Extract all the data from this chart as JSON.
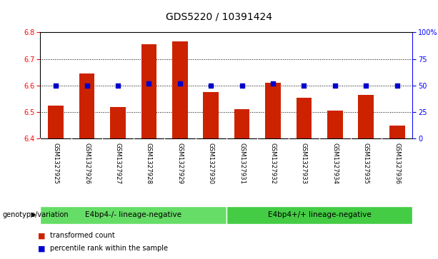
{
  "title": "GDS5220 / 10391424",
  "samples": [
    "GSM1327925",
    "GSM1327926",
    "GSM1327927",
    "GSM1327928",
    "GSM1327929",
    "GSM1327930",
    "GSM1327931",
    "GSM1327932",
    "GSM1327933",
    "GSM1327934",
    "GSM1327935",
    "GSM1327936"
  ],
  "red_values": [
    6.525,
    6.645,
    6.52,
    6.755,
    6.765,
    6.575,
    6.51,
    6.61,
    6.555,
    6.505,
    6.565,
    6.45
  ],
  "blue_values": [
    50,
    50,
    50,
    52,
    52,
    50,
    50,
    52,
    50,
    50,
    50,
    50
  ],
  "ylim_left": [
    6.4,
    6.8
  ],
  "ylim_right": [
    0,
    100
  ],
  "yticks_left": [
    6.4,
    6.5,
    6.6,
    6.7,
    6.8
  ],
  "yticks_right": [
    0,
    25,
    50,
    75,
    100
  ],
  "ytick_labels_right": [
    "0",
    "25",
    "50",
    "75",
    "100%"
  ],
  "group1_label": "E4bp4-/- lineage-negative",
  "group2_label": "E4bp4+/+ lineage-negative",
  "group1_indices": [
    0,
    1,
    2,
    3,
    4,
    5
  ],
  "group2_indices": [
    6,
    7,
    8,
    9,
    10,
    11
  ],
  "genotype_label": "genotype/variation",
  "legend_red": "transformed count",
  "legend_blue": "percentile rank within the sample",
  "bar_color": "#cc2200",
  "dot_color": "#0000cc",
  "group1_color": "#66dd66",
  "group2_color": "#44cc44",
  "bg_color": "#ffffff",
  "plot_bg": "#ffffff",
  "tick_area_bg": "#c8c8c8",
  "title_fontsize": 10,
  "tick_fontsize": 7,
  "bar_width": 0.5,
  "dot_size": 18
}
